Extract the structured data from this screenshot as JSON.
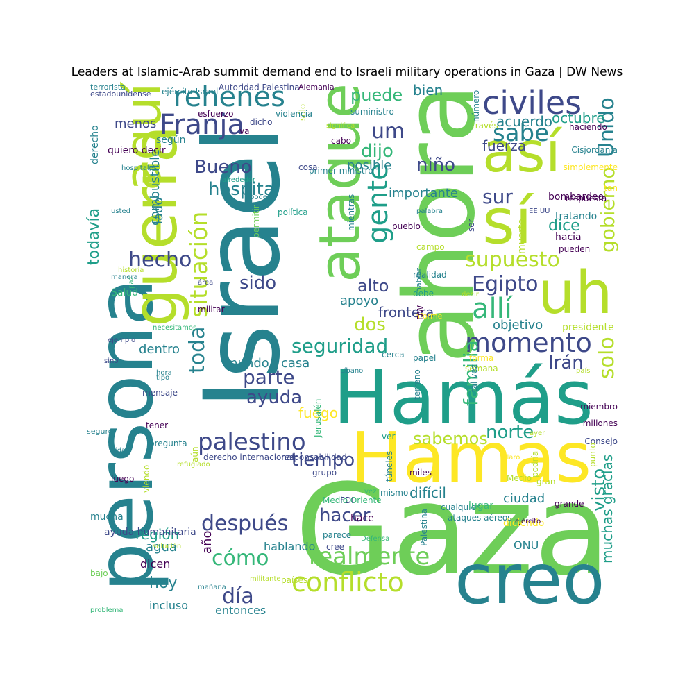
{
  "title": "Leaders at Islamic-Arab summit demand end to Israeli military operations in Gaza | DW News",
  "palette": [
    "#440154",
    "#482878",
    "#3e4989",
    "#31688e",
    "#26828e",
    "#1f9e89",
    "#35b779",
    "#6ece58",
    "#b5de2b",
    "#fde725"
  ],
  "words": [
    "Israel",
    "Gaza",
    "Hamás",
    "ahora",
    "persona",
    "Hamas",
    "creo",
    "guerra",
    "ataque",
    "aquí",
    "así",
    "uh",
    "sí",
    "civiles",
    "rehenes",
    "Franja",
    "situación",
    "momento",
    "conflicto",
    "realmente",
    "Unido",
    "gobierno",
    "solo",
    "supuesto",
    "seguridad",
    "palestino",
    "gente",
    "Egipto",
    "allí",
    "sabe",
    "familia",
    "parte",
    "hecho",
    "puede",
    "um",
    "después",
    "cómo",
    "día",
    "hospital",
    "Bueno",
    "sido",
    "dijo",
    "niño",
    "ayuda",
    "toda",
    "hacer",
    "tiempo",
    "norte",
    "sabemos",
    "dos",
    "Irán",
    "alto",
    "sur",
    "visto",
    "muchas gracias",
    "frontera",
    "dice",
    "hoy",
    "fuego",
    "región",
    "agua",
    "mundo",
    "casa",
    "dentro",
    "octubre",
    "acuerdo",
    "fuerza",
    "posible",
    "importante",
    "combustible",
    "todavía",
    "lado",
    "menos",
    "bien",
    "apoyo",
    "objetivo",
    "difícil",
    "ciudad",
    "diciendo",
    "ONU",
    "incluso",
    "entonces",
    "hablando",
    "año",
    "dicen",
    "presidente",
    "bombardeo",
    "tratando",
    "hacia",
    "pueden",
    "respuesta",
    "Cisjordania",
    "haciendo",
    "través",
    "simplemente",
    "tan",
    "EE UU",
    "muerto",
    "ser",
    "pueblo",
    "palabra",
    "cabo",
    "significa",
    "suministro",
    "número",
    "sólo",
    "Alemania",
    "Autoridad Palestina",
    "ejército Israel",
    "terrorista",
    "estadounidense",
    "esfuerzo",
    "violencia",
    "dicho",
    "va",
    "según",
    "quiero decir",
    "derecho",
    "hospitales",
    "alrededor",
    "poder",
    "permitir",
    "política",
    "mientras",
    "primer ministro",
    "cosa",
    "usted",
    "historia",
    "manera",
    "Salud",
    "paz",
    "área",
    "militar",
    "necesitamos",
    "ejemplo",
    "sino",
    "hora",
    "tipo",
    "mensaje",
    "seguro",
    "tener",
    "pregunta",
    "vida",
    "luego",
    "viendo",
    "aún",
    "derecho internacional",
    "responsabilidad",
    "ayuda humanitaria",
    "solución",
    "bajo",
    "mucha",
    "mañana",
    "militante",
    "problema",
    "países",
    "cree",
    "Defensa",
    "Medio Oriente",
    "vez",
    "FDI",
    "mismo",
    "hace",
    "Palestina",
    "cualquier",
    "ataques aéreos",
    "decir",
    "miembro",
    "millones",
    "Consejo",
    "punto",
    "ayer",
    "podría",
    "gran",
    "grande",
    "ejército",
    "Medio",
    "lugar",
    "miles",
    "túneles",
    "ver",
    "parece",
    "Jerusalén",
    "semana",
    "grupo",
    "cerca",
    "papel",
    "informe",
    "forma",
    "tal vez",
    "país",
    "claro",
    "refugiado",
    "campo",
    "realidad",
    "debe",
    "DW",
    "hablar",
    "terreno",
    "Líbano"
  ]
}
